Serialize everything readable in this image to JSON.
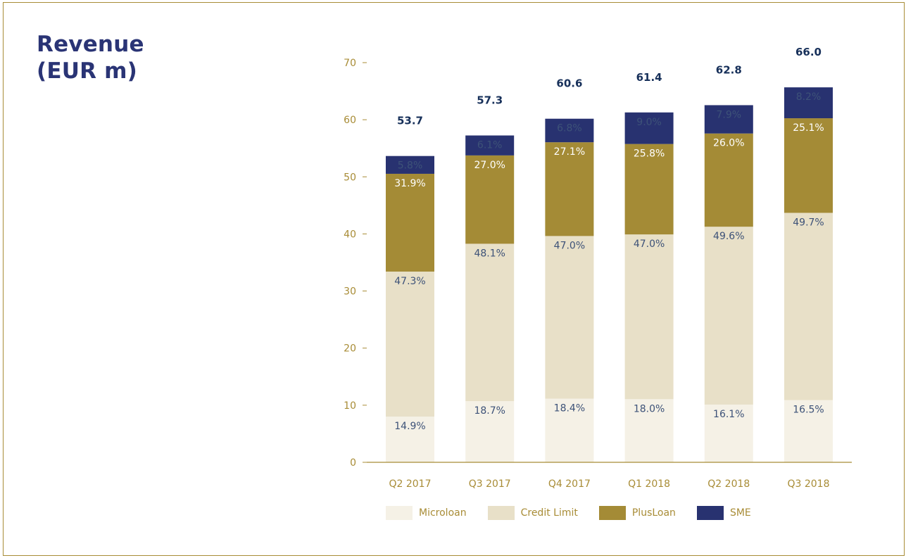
{
  "title_lines": [
    "Revenue",
    "(EUR m)"
  ],
  "colors": {
    "accent": "#a88c36",
    "title": "#2a3475",
    "total_label": "#17305a",
    "segment_label_dark": "#3d5278",
    "segment_label_light": "#ffffff"
  },
  "chart_data": {
    "type": "bar",
    "stacked": true,
    "title": "Revenue (EUR m)",
    "xlabel": "",
    "ylabel": "",
    "ylim": [
      0,
      70
    ],
    "yticks": [
      0,
      10,
      20,
      30,
      40,
      50,
      60,
      70
    ],
    "grid": false,
    "legend_position": "bottom",
    "categories": [
      "Q2 2017",
      "Q3 2017",
      "Q4 2017",
      "Q1 2018",
      "Q2 2018",
      "Q3 2018"
    ],
    "totals": [
      53.7,
      57.3,
      60.6,
      61.4,
      62.8,
      66.0
    ],
    "totals_labels": [
      "53.7",
      "57.3",
      "60.6",
      "61.4",
      "62.8",
      "66.0"
    ],
    "series": [
      {
        "name": "Microloan",
        "color": "#f5f1e6",
        "label_color": "#3d5278",
        "share_pct": [
          14.9,
          18.7,
          18.4,
          18.0,
          16.1,
          16.5
        ],
        "labels": [
          "14.9%",
          "18.7%",
          "18.4%",
          "18.0%",
          "16.1%",
          "16.5%"
        ]
      },
      {
        "name": "Credit Limit",
        "color": "#e8e0c8",
        "label_color": "#3d5278",
        "share_pct": [
          47.3,
          48.1,
          47.0,
          47.0,
          49.6,
          49.7
        ],
        "labels": [
          "47.3%",
          "48.1%",
          "47.0%",
          "47.0%",
          "49.6%",
          "49.7%"
        ]
      },
      {
        "name": "PlusLoan",
        "color": "#a48b36",
        "label_color": "#ffffff",
        "share_pct": [
          31.9,
          27.0,
          27.1,
          25.8,
          26.0,
          25.1
        ],
        "labels": [
          "31.9%",
          "27.0%",
          "27.1%",
          "25.8%",
          "26.0%",
          "25.1%"
        ]
      },
      {
        "name": "SME",
        "color": "#283270",
        "label_color": "#3d5278",
        "share_pct": [
          5.8,
          6.1,
          6.8,
          9.0,
          7.9,
          8.2
        ],
        "labels": [
          "5.8%",
          "6.1%",
          "6.8%",
          "9.0%",
          "7.9%",
          "8.2%"
        ]
      }
    ]
  }
}
